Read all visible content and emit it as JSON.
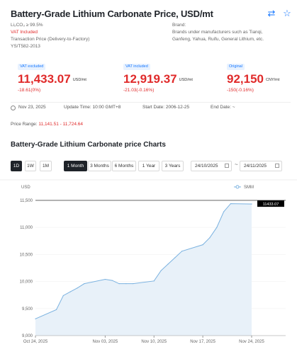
{
  "header": {
    "title": "Battery-Grade Lithium Carbonate Price, USD/mt"
  },
  "info_left": {
    "purity": "Li₂CO₃ ≥ 99.5%",
    "vat": "VAT Included",
    "transaction": "Transaction Price (Delivery-to-Factory)",
    "standard": "YS/T582-2013"
  },
  "info_right": {
    "brand_label": "Brand:",
    "brand_text": "Brands under manufacturers such as Tianqi, Ganfeng, Yahua, Ruifu, General Lithium, etc."
  },
  "prices": [
    {
      "tag": "VAT excluded",
      "value": "11,433.07",
      "unit": "USD/mt",
      "change": "-18.61(0%)"
    },
    {
      "tag": "VAT included",
      "value": "12,919.37",
      "unit": "USD/mt",
      "change": "-21.03(-0.16%)"
    },
    {
      "tag": "Original",
      "value": "92,150",
      "unit": "CNY/mt",
      "change": "-150(-0.16%)"
    }
  ],
  "dates": {
    "date": "Nov 23, 2025",
    "update": "Update Time: 10:00 GMT+8",
    "start": "Start Date: 2006-12-25",
    "end": "End Date: ~"
  },
  "range": {
    "label": "Price Range:",
    "value": "11,141.51 - 11,724.64"
  },
  "section_title": "Battery-Grade Lithium Carbonate price Charts",
  "controls": {
    "intervals": [
      "1D",
      "1W",
      "1M"
    ],
    "periods": [
      "1 Month",
      "3 Months",
      "6 Months",
      "1 Year",
      "3 Years"
    ],
    "date_from": "24/10/2025",
    "date_to": "24/11/2025",
    "tilde": "~"
  },
  "colors": {
    "accent": "#1677ff",
    "down": "#e02a2a",
    "line": "#7bb2e0",
    "area": "#e8f1f9"
  },
  "chart_data": {
    "type": "area",
    "ylabel": "USD",
    "legend": "SMM",
    "legend_position": "top-right",
    "ylim": [
      9000,
      11500
    ],
    "yticks": [
      "11,500",
      "11,000",
      "10,500",
      "10,000",
      "9,500",
      "9,000"
    ],
    "xticks": [
      "Oct 24, 2025",
      "Nov 03, 2025",
      "Nov 10, 2025",
      "Nov 17, 2025",
      "Nov 24, 2025"
    ],
    "last_label": "11433.07",
    "points": [
      [
        "2025-10-24",
        9310
      ],
      [
        "2025-10-27",
        9480
      ],
      [
        "2025-10-28",
        9740
      ],
      [
        "2025-10-29",
        9810
      ],
      [
        "2025-10-30",
        9880
      ],
      [
        "2025-10-31",
        9960
      ],
      [
        "2025-11-03",
        10040
      ],
      [
        "2025-11-04",
        10020
      ],
      [
        "2025-11-05",
        9960
      ],
      [
        "2025-11-06",
        9960
      ],
      [
        "2025-11-07",
        9960
      ],
      [
        "2025-11-10",
        10010
      ],
      [
        "2025-11-11",
        10200
      ],
      [
        "2025-11-12",
        10320
      ],
      [
        "2025-11-13",
        10440
      ],
      [
        "2025-11-14",
        10560
      ],
      [
        "2025-11-17",
        10680
      ],
      [
        "2025-11-18",
        10810
      ],
      [
        "2025-11-19",
        11000
      ],
      [
        "2025-11-20",
        11290
      ],
      [
        "2025-11-21",
        11440
      ],
      [
        "2025-11-24",
        11433
      ]
    ]
  }
}
